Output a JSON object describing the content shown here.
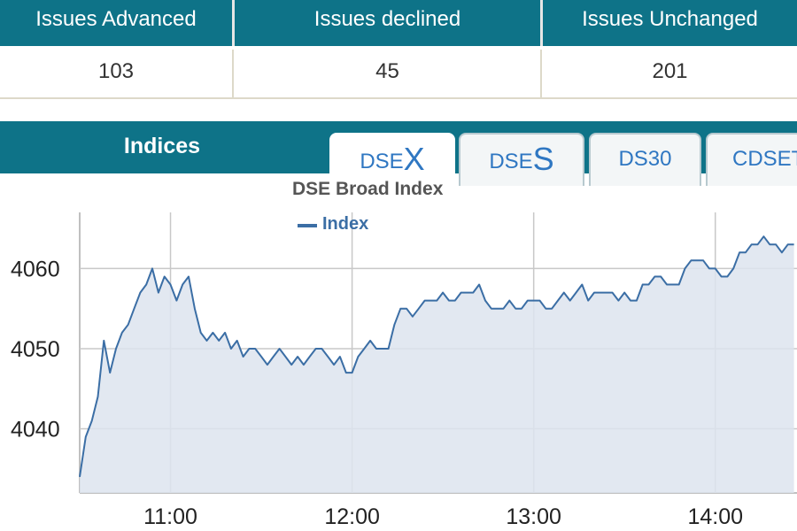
{
  "summary": {
    "headers": [
      "Issues Advanced",
      "Issues declined",
      "Issues Unchanged"
    ],
    "values": [
      "103",
      "45",
      "201"
    ]
  },
  "indices": {
    "label": "Indices",
    "tabs": [
      {
        "prefix": "DSE",
        "suffix": "X",
        "label": "DSEX",
        "active": true
      },
      {
        "prefix": "DSE",
        "suffix": "S",
        "label": "DSES",
        "active": false
      },
      {
        "prefix": "",
        "suffix": "",
        "label": "DS30",
        "active": false
      },
      {
        "prefix": "",
        "suffix": "",
        "label": "CDSET",
        "active": false
      }
    ]
  },
  "colors": {
    "header_bg": "#0e7388",
    "series_line": "#3b6ea5",
    "area_fill": "#dde4ee",
    "tab_text": "#2f77c2"
  },
  "chart_data": {
    "type": "area",
    "title": "DSE Broad Index",
    "series": [
      {
        "name": "Index",
        "color": "#3b6ea5"
      }
    ],
    "x_ticks": [
      "11:00",
      "12:00",
      "13:00",
      "14:00"
    ],
    "y_ticks": [
      4040,
      4050,
      4060
    ],
    "xlim": [
      "10:30",
      "14:27"
    ],
    "ylim": [
      4032,
      4067
    ],
    "grid": true,
    "legend_position": "top-left",
    "x": [
      "10:30",
      "10:32",
      "10:34",
      "10:36",
      "10:38",
      "10:40",
      "10:42",
      "10:44",
      "10:46",
      "10:48",
      "10:50",
      "10:52",
      "10:54",
      "10:56",
      "10:58",
      "11:00",
      "11:02",
      "11:04",
      "11:06",
      "11:08",
      "11:10",
      "11:12",
      "11:14",
      "11:16",
      "11:18",
      "11:20",
      "11:22",
      "11:24",
      "11:26",
      "11:28",
      "11:30",
      "11:32",
      "11:34",
      "11:36",
      "11:38",
      "11:40",
      "11:42",
      "11:44",
      "11:46",
      "11:48",
      "11:50",
      "11:52",
      "11:54",
      "11:56",
      "11:58",
      "12:00",
      "12:02",
      "12:04",
      "12:06",
      "12:08",
      "12:10",
      "12:12",
      "12:14",
      "12:16",
      "12:18",
      "12:20",
      "12:22",
      "12:24",
      "12:26",
      "12:28",
      "12:30",
      "12:32",
      "12:34",
      "12:36",
      "12:38",
      "12:40",
      "12:42",
      "12:44",
      "12:46",
      "12:48",
      "12:50",
      "12:52",
      "12:54",
      "12:56",
      "12:58",
      "13:00",
      "13:02",
      "13:04",
      "13:06",
      "13:08",
      "13:10",
      "13:12",
      "13:14",
      "13:16",
      "13:18",
      "13:20",
      "13:22",
      "13:24",
      "13:26",
      "13:28",
      "13:30",
      "13:32",
      "13:34",
      "13:36",
      "13:38",
      "13:40",
      "13:42",
      "13:44",
      "13:46",
      "13:48",
      "13:50",
      "13:52",
      "13:54",
      "13:56",
      "13:58",
      "14:00",
      "14:02",
      "14:04",
      "14:06",
      "14:08",
      "14:10",
      "14:12",
      "14:14",
      "14:16",
      "14:18",
      "14:20",
      "14:22",
      "14:24",
      "14:26"
    ],
    "values": [
      4034,
      4039,
      4041,
      4044,
      4051,
      4047,
      4050,
      4052,
      4053,
      4055,
      4057,
      4058,
      4060,
      4057,
      4059,
      4058,
      4056,
      4058,
      4059,
      4055,
      4052,
      4051,
      4052,
      4051,
      4052,
      4050,
      4051,
      4049,
      4050,
      4050,
      4049,
      4048,
      4049,
      4050,
      4049,
      4048,
      4049,
      4048,
      4049,
      4050,
      4050,
      4049,
      4048,
      4049,
      4047,
      4047,
      4049,
      4050,
      4051,
      4050,
      4050,
      4050,
      4053,
      4055,
      4055,
      4054,
      4055,
      4056,
      4056,
      4056,
      4057,
      4056,
      4056,
      4057,
      4057,
      4057,
      4058,
      4056,
      4055,
      4055,
      4055,
      4056,
      4055,
      4055,
      4056,
      4056,
      4056,
      4055,
      4055,
      4056,
      4057,
      4056,
      4057,
      4058,
      4056,
      4057,
      4057,
      4057,
      4057,
      4056,
      4057,
      4056,
      4056,
      4058,
      4058,
      4059,
      4059,
      4058,
      4058,
      4058,
      4060,
      4061,
      4061,
      4061,
      4060,
      4060,
      4059,
      4059,
      4060,
      4062,
      4062,
      4063,
      4063,
      4064,
      4063,
      4063,
      4062,
      4063,
      4063
    ]
  }
}
